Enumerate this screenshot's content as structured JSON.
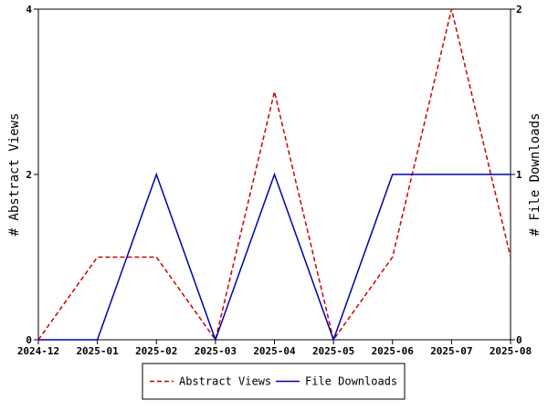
{
  "chart_data": {
    "type": "line",
    "categories": [
      "2024-12",
      "2025-01",
      "2025-02",
      "2025-03",
      "2025-04",
      "2025-05",
      "2025-06",
      "2025-07",
      "2025-08"
    ],
    "left_axis": {
      "label": "# Abstract Views",
      "ylim": [
        0,
        4
      ],
      "ticks": [
        "0",
        "2",
        "4"
      ]
    },
    "right_axis": {
      "label": "# File Downloads",
      "ylim": [
        0,
        2
      ],
      "ticks": [
        "0",
        "1",
        "2"
      ]
    },
    "series": [
      {
        "name": "Abstract Views",
        "axis": "left",
        "color": "#cc0000",
        "style": "dashed",
        "values": [
          0,
          1,
          1,
          0,
          3,
          0,
          1,
          4,
          1
        ]
      },
      {
        "name": "File Downloads",
        "axis": "right",
        "color": "#0000aa",
        "style": "solid",
        "values": [
          0,
          0,
          1,
          0,
          1,
          0,
          1,
          1,
          1
        ]
      }
    ],
    "legend": {
      "placement": "bottom"
    },
    "grid": false
  }
}
